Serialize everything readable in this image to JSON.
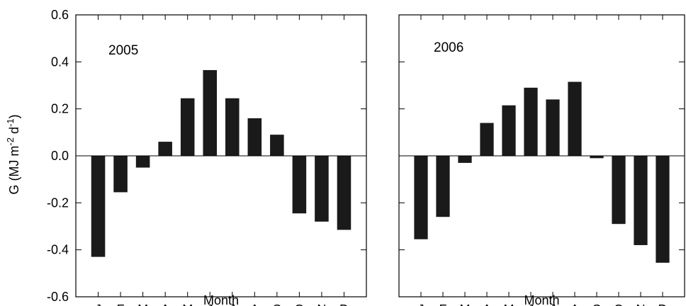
{
  "figure": {
    "y_axis_label": {
      "prefix": "G (MJ m",
      "sup1": "-2",
      "middle": " d",
      "sup2": "-1",
      "suffix": ")"
    }
  },
  "chart_data": [
    {
      "type": "bar",
      "annotation": "2005",
      "xlabel": "Month",
      "ylabel": "G (MJ m-2 d-1)",
      "categories": [
        "J",
        "F",
        "M",
        "A",
        "M",
        "J",
        "J",
        "A",
        "S",
        "O",
        "N",
        "D"
      ],
      "values": [
        -0.43,
        -0.155,
        -0.05,
        0.06,
        0.245,
        0.365,
        0.245,
        0.16,
        0.09,
        -0.245,
        -0.28,
        -0.315
      ],
      "ylim": [
        -0.6,
        0.6
      ],
      "yticks": [
        "-0.6",
        "-0.4",
        "-0.2",
        "0.0",
        "0.2",
        "0.4",
        "0.6"
      ],
      "bar_color": "#1a1a1a",
      "grid": false,
      "zero_line": true
    },
    {
      "type": "bar",
      "annotation": "2006",
      "xlabel": "Month",
      "ylabel": "",
      "categories": [
        "J",
        "F",
        "M",
        "A",
        "M",
        "J",
        "J",
        "A",
        "S",
        "O",
        "N",
        "D"
      ],
      "values": [
        -0.355,
        -0.26,
        -0.03,
        0.14,
        0.215,
        0.29,
        0.24,
        0.315,
        -0.01,
        -0.29,
        -0.38,
        -0.455
      ],
      "ylim": [
        -0.6,
        0.6
      ],
      "yticks": [],
      "bar_color": "#1a1a1a",
      "grid": false,
      "zero_line": true
    }
  ]
}
